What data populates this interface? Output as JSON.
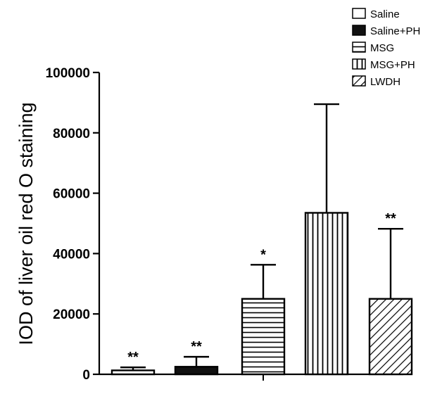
{
  "chart_data": {
    "type": "bar",
    "title": "",
    "xlabel": "",
    "ylabel": "IOD of liver oil red O staining",
    "ylim": [
      0,
      100000
    ],
    "yticks": [
      0,
      20000,
      40000,
      60000,
      80000,
      100000
    ],
    "ytick_labels": [
      "0",
      "20000",
      "40000",
      "60000",
      "80000",
      "100000"
    ],
    "categories": [
      "Saline",
      "Saline+PH",
      "MSG",
      "MSG+PH",
      "LWDH"
    ],
    "values": [
      1300,
      2500,
      25000,
      53500,
      25000
    ],
    "error_upper": [
      2300,
      5800,
      36300,
      89500,
      48200
    ],
    "significance": [
      "**",
      "**",
      "*",
      "",
      "**"
    ],
    "legend": {
      "position": "top-right",
      "entries": [
        {
          "label": "Saline",
          "pattern": "white"
        },
        {
          "label": "Saline+PH",
          "pattern": "solid-black"
        },
        {
          "label": "MSG",
          "pattern": "horizontal-lines"
        },
        {
          "label": "MSG+PH",
          "pattern": "vertical-lines"
        },
        {
          "label": "LWDH",
          "pattern": "diagonal-lines"
        }
      ]
    },
    "grid": false
  }
}
